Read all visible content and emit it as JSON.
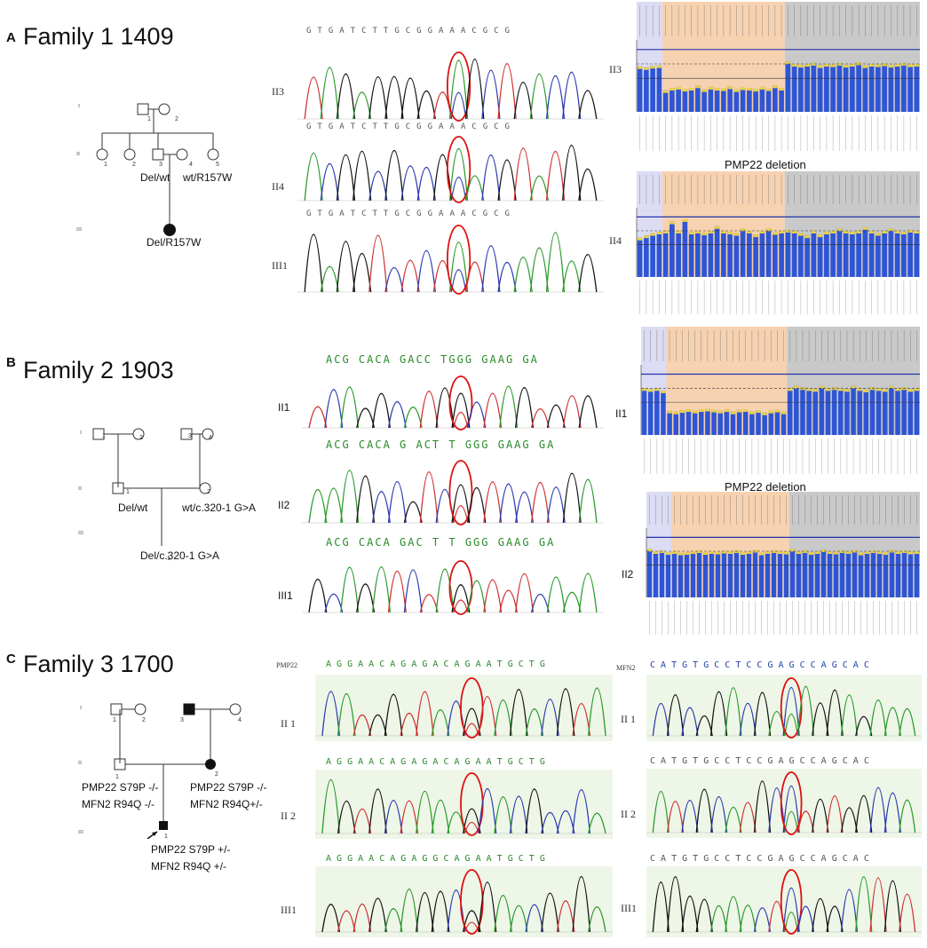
{
  "panels": [
    {
      "letter": "A",
      "title": "Family 1 1409",
      "roman": [
        "I",
        "II",
        "III"
      ],
      "genotypes": [
        "Del/wt",
        "wt/R157W",
        "Del/R157W"
      ],
      "idx": [
        "1",
        "2",
        "1",
        "2",
        "3",
        "4",
        "5"
      ],
      "seq_top": "GTGATCTTGCGGAAACGCG",
      "seq_mid": "GTGATCTTGCGGAAACGCG",
      "seq_low": "GTGATCTTGCGGAAACGCG",
      "trace_labels": [
        "II3",
        "II4",
        "III1"
      ],
      "mlpa_labels": [
        "II3",
        "II4"
      ],
      "mlpa_caption": "PMP22 deletion"
    },
    {
      "letter": "B",
      "title": "Family 2  1903",
      "roman": [
        "I",
        "II",
        "III"
      ],
      "genotypes": [
        "Del/wt",
        "wt/c.320-1 G>A",
        "Del/c.320-1 G>A"
      ],
      "idx": [
        "1",
        "2",
        "3",
        "4",
        "1",
        "2",
        "1"
      ],
      "seq_top": "ACG CACA GACC TGGG GAAG GA",
      "seq_mid": "ACG CACA G ACT T GGG GAAG GA",
      "seq_low": "ACG CACA GAC T T GGG GAAG GA",
      "trace_labels": [
        "II1",
        "II2",
        "III1"
      ],
      "mlpa_labels": [
        "II1",
        "II2"
      ],
      "mlpa_caption": "PMP22 deletion"
    },
    {
      "letter": "C",
      "title": "Family 3 1700",
      "roman": [
        "I",
        "II",
        "III"
      ],
      "genotypes": [
        "PMP22 S79P -/-",
        "MFN2 R94Q -/-",
        "PMP22 S79P -/-",
        "MFN2 R94Q+/-",
        "PMP22 S79P  +/-",
        "MFN2 R94Q  +/-"
      ],
      "idx": [
        "1",
        "2",
        "3",
        "4",
        "1",
        "2",
        "1"
      ],
      "gene_left": "PMP22",
      "gene_right": "MFN2",
      "seq_pmp_1": "A G G A A C A G A G A C A G A A T G C T G",
      "seq_pmp_2": "A G G A A C A G A G A C A G A A T G C T G",
      "seq_pmp_3": "A G G A A C A G A G G C A G A A T G C T G",
      "seq_mfn_1": "C A T G T G C C T C C G   A G C C A G C A C",
      "seq_mfn_2": "C A T G T G C C T C C G   A G C C A G C A C",
      "seq_mfn_3": "C A T G T G C C T C C G   A G C C A G C A C",
      "trace_labels": [
        "II 1",
        "II 2",
        "III1"
      ]
    }
  ],
  "mlpa_bars": {
    "II3": [
      0.95,
      0.93,
      0.96,
      0.97,
      0.45,
      0.5,
      0.52,
      0.48,
      0.5,
      0.55,
      0.47,
      0.52,
      0.5,
      0.49,
      0.53,
      0.47,
      0.51,
      0.5,
      0.48,
      0.52,
      0.49,
      0.55,
      0.5,
      1.05,
      1.0,
      0.98,
      1.0,
      1.02,
      0.97,
      1.0,
      0.99,
      1.02,
      0.98,
      1.0,
      1.03,
      0.97,
      1.0,
      0.99,
      1.01,
      0.98,
      1.0,
      1.02,
      0.99,
      1.0
    ],
    "II4": [
      0.85,
      0.9,
      0.95,
      0.98,
      1.0,
      1.2,
      1.0,
      1.25,
      0.98,
      1.0,
      0.96,
      1.0,
      1.1,
      1.0,
      0.98,
      0.95,
      1.05,
      1.0,
      0.92,
      1.0,
      1.05,
      0.97,
      1.0,
      1.02,
      1.0,
      0.95,
      0.9,
      1.0,
      0.92,
      0.98,
      1.0,
      1.05,
      1.0,
      0.98,
      1.0,
      1.08,
      1.0,
      0.95,
      1.0,
      1.05,
      1.0,
      0.98,
      1.02,
      1.0
    ],
    "B_II1": [
      1.0,
      0.98,
      1.0,
      0.95,
      0.52,
      0.5,
      0.53,
      0.55,
      0.52,
      0.55,
      0.56,
      0.54,
      0.52,
      0.55,
      0.5,
      0.54,
      0.55,
      0.5,
      0.53,
      0.48,
      0.52,
      0.54,
      0.5,
      1.0,
      1.05,
      1.02,
      1.0,
      0.98,
      1.05,
      1.0,
      1.02,
      1.0,
      0.98,
      1.05,
      1.0,
      0.97,
      1.02,
      1.0,
      0.98,
      1.05,
      1.0,
      1.02,
      0.98,
      1.0
    ],
    "B_II2": [
      1.05,
      1.0,
      1.02,
      0.98,
      1.0,
      0.97,
      0.98,
      1.0,
      1.02,
      0.98,
      1.0,
      0.99,
      1.01,
      1.0,
      1.02,
      0.98,
      1.0,
      1.03,
      0.97,
      1.0,
      1.02,
      1.0,
      0.99,
      1.05,
      1.0,
      1.02,
      0.98,
      1.0,
      1.04,
      1.0,
      0.99,
      1.02,
      1.0,
      1.03,
      0.97,
      1.0,
      1.02,
      1.0,
      0.98,
      1.03,
      1.0,
      1.02,
      0.99,
      1.0
    ]
  }
}
